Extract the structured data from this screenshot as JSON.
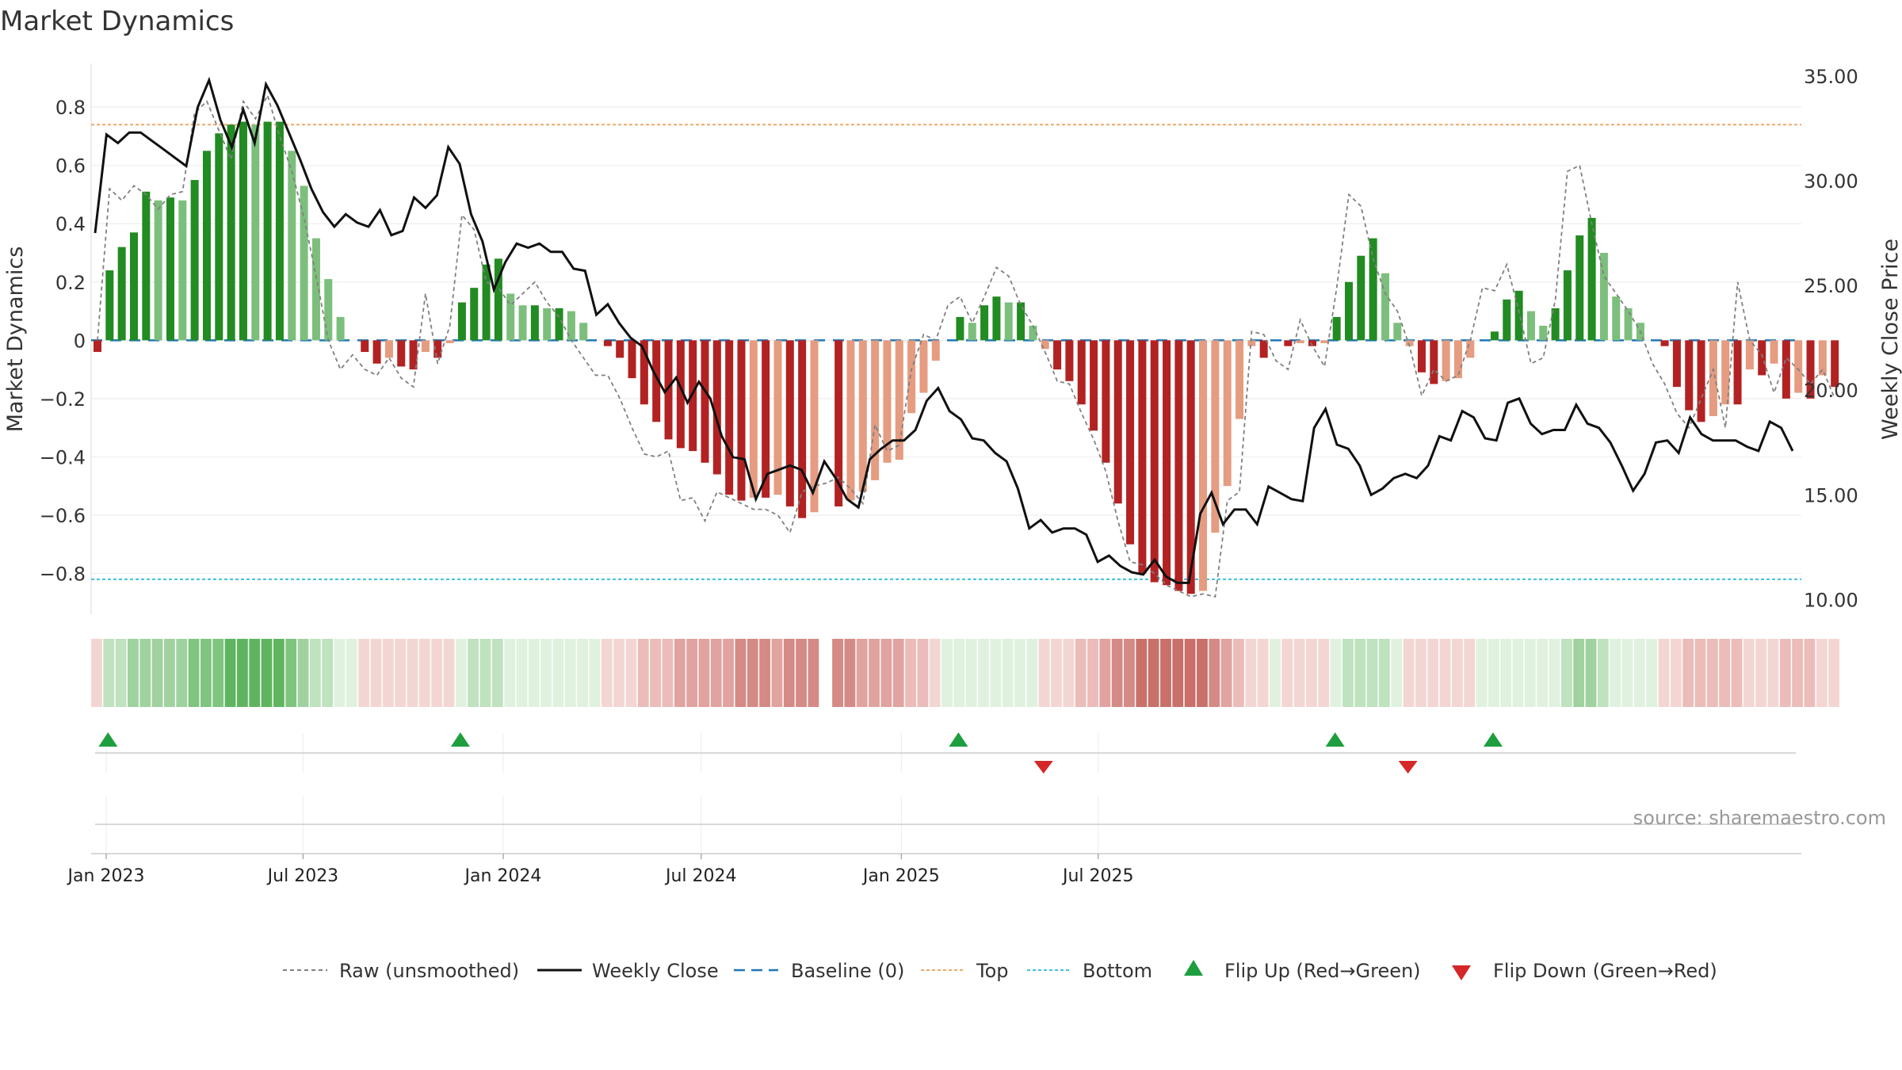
{
  "chart_data": {
    "type": "bar",
    "title": "Market Dynamics",
    "ylabel_left": "Market Dynamics",
    "ylabel_right": "Weekly Close Price",
    "y_left_range": [
      -0.94,
      0.95
    ],
    "y_left_ticks": [
      "0.8",
      "0.6",
      "0.4",
      "0.2",
      "0",
      "−0.2",
      "−0.4",
      "−0.6",
      "−0.8"
    ],
    "y_left_tick_values": [
      0.8,
      0.6,
      0.4,
      0.2,
      0,
      -0.2,
      -0.4,
      -0.6,
      -0.8
    ],
    "y_right_range": [
      9.3,
      35.6
    ],
    "y_right_ticks": [
      "35.00",
      "30.00",
      "25.00",
      "20.00",
      "15.00",
      "10.00"
    ],
    "y_right_tick_values": [
      35,
      30,
      25,
      20,
      15,
      10
    ],
    "x_start": "2023-01-01",
    "x_ticks": [
      "Jan 2023",
      "Jul 2023",
      "Jan 2024",
      "Jul 2024",
      "Jan 2025",
      "Jul 2025"
    ],
    "x_tick_dates": [
      "2023-01-01",
      "2023-07-01",
      "2024-01-01",
      "2024-07-01",
      "2025-01-01",
      "2025-07-01"
    ],
    "top_level": 0.74,
    "bottom_level": -0.82,
    "grid": true,
    "legend_position": "bottom",
    "source": "source: sharemaestro.com",
    "colors": {
      "strong_green": "#228b22",
      "weak_green": "#7cbf7c",
      "strong_red": "#b22222",
      "weak_red": "#e59c80",
      "weekly_close": "#111111",
      "raw": "#808080",
      "baseline": "#1f77b4",
      "top": "#f0a868",
      "bottom": "#3fbfdf",
      "flip_up": "#1e9e3e",
      "flip_down": "#d62728"
    },
    "dynamics": [
      -0.04,
      0.24,
      0.32,
      0.37,
      0.51,
      0.48,
      0.49,
      0.48,
      0.55,
      0.65,
      0.71,
      0.74,
      0.75,
      0.74,
      0.75,
      0.75,
      0.65,
      0.53,
      0.35,
      0.21,
      0.08,
      0.0,
      -0.04,
      -0.08,
      -0.06,
      -0.09,
      -0.1,
      -0.04,
      -0.06,
      -0.01,
      0.13,
      0.18,
      0.26,
      0.28,
      0.16,
      0.12,
      0.12,
      0.11,
      0.11,
      0.1,
      0.06,
      0.0,
      -0.02,
      -0.06,
      -0.13,
      -0.22,
      -0.28,
      -0.34,
      -0.37,
      -0.38,
      -0.42,
      -0.46,
      -0.53,
      -0.55,
      -0.54,
      -0.54,
      -0.53,
      -0.57,
      -0.61,
      -0.59,
      0.0,
      -0.57,
      -0.55,
      -0.52,
      -0.48,
      -0.42,
      -0.41,
      -0.25,
      -0.18,
      -0.07,
      0.0,
      0.08,
      0.06,
      0.12,
      0.15,
      0.13,
      0.13,
      0.05,
      -0.03,
      -0.1,
      -0.14,
      -0.22,
      -0.31,
      -0.42,
      -0.56,
      -0.7,
      -0.8,
      -0.83,
      -0.84,
      -0.86,
      -0.87,
      -0.86,
      -0.66,
      -0.5,
      -0.27,
      -0.02,
      -0.06,
      0.0,
      -0.02,
      -0.01,
      -0.02,
      -0.01,
      0.08,
      0.2,
      0.29,
      0.35,
      0.23,
      0.06,
      -0.02,
      -0.11,
      -0.15,
      -0.14,
      -0.13,
      -0.06,
      0.0,
      0.03,
      0.14,
      0.17,
      0.1,
      0.05,
      0.11,
      0.24,
      0.36,
      0.42,
      0.3,
      0.15,
      0.11,
      0.06,
      0.0,
      -0.02,
      -0.16,
      -0.24,
      -0.28,
      -0.26,
      -0.22,
      -0.22,
      -0.1,
      -0.12,
      -0.08,
      -0.2,
      -0.18,
      -0.2,
      -0.12,
      -0.16
    ],
    "raw": [
      0.0,
      0.52,
      0.48,
      0.53,
      0.5,
      0.45,
      0.5,
      0.51,
      0.78,
      0.82,
      0.72,
      0.62,
      0.82,
      0.76,
      0.84,
      0.7,
      0.58,
      0.42,
      0.22,
      0.0,
      -0.1,
      -0.05,
      -0.1,
      -0.12,
      -0.06,
      -0.13,
      -0.16,
      0.16,
      -0.08,
      0.05,
      0.43,
      0.38,
      0.2,
      0.18,
      0.12,
      0.16,
      0.2,
      0.13,
      0.08,
      0.0,
      -0.06,
      -0.12,
      -0.12,
      -0.2,
      -0.3,
      -0.39,
      -0.4,
      -0.38,
      -0.55,
      -0.54,
      -0.62,
      -0.52,
      -0.54,
      -0.56,
      -0.58,
      -0.58,
      -0.6,
      -0.66,
      -0.52,
      -0.5,
      -0.49,
      -0.47,
      -0.51,
      -0.56,
      -0.29,
      -0.38,
      -0.36,
      -0.1,
      0.02,
      0.0,
      0.12,
      0.15,
      0.06,
      0.15,
      0.25,
      0.22,
      0.12,
      0.05,
      -0.04,
      -0.14,
      -0.15,
      -0.25,
      -0.34,
      -0.45,
      -0.62,
      -0.76,
      -0.77,
      -0.8,
      -0.84,
      -0.86,
      -0.88,
      -0.87,
      -0.88,
      -0.55,
      -0.52,
      0.03,
      0.02,
      -0.07,
      -0.1,
      0.07,
      -0.02,
      -0.09,
      0.18,
      0.5,
      0.46,
      0.28,
      0.16,
      0.1,
      -0.02,
      -0.19,
      -0.1,
      -0.14,
      -0.12,
      0.0,
      0.18,
      0.17,
      0.26,
      0.1,
      -0.08,
      -0.06,
      0.14,
      0.58,
      0.6,
      0.4,
      0.22,
      0.16,
      0.1,
      0.03,
      -0.08,
      -0.15,
      -0.25,
      -0.3,
      -0.2,
      -0.1,
      -0.3,
      0.2,
      0.0,
      -0.05,
      -0.18,
      -0.06,
      -0.1,
      -0.15,
      -0.1,
      -0.2
    ]
  },
  "legend": {
    "raw": "Raw (unsmoothed)",
    "close": "Weekly Close",
    "baseline": "Baseline (0)",
    "top": "Top",
    "bottom": "Bottom",
    "flip_up": "Flip Up (Red→Green)",
    "flip_down": "Flip Down (Green→Red)"
  }
}
